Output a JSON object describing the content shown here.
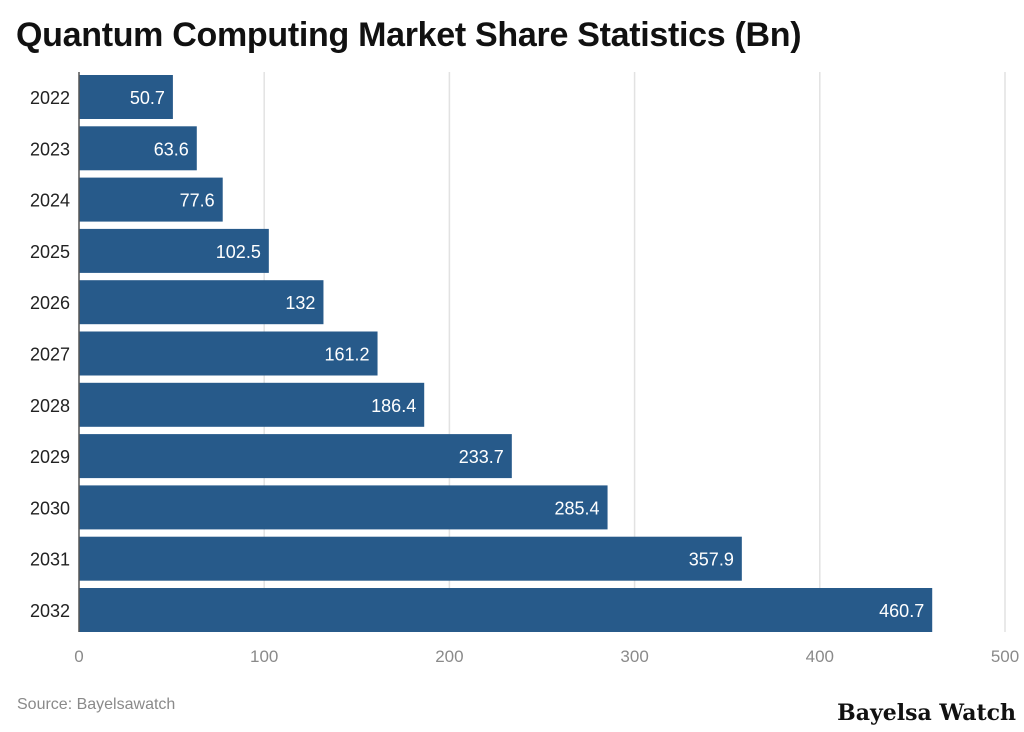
{
  "chart_data": {
    "type": "bar",
    "orientation": "horizontal",
    "title": "Quantum Computing Market Share Statistics (Bn)",
    "categories": [
      "2022",
      "2023",
      "2024",
      "2025",
      "2026",
      "2027",
      "2028",
      "2029",
      "2030",
      "2031",
      "2032"
    ],
    "values": [
      50.7,
      63.6,
      77.6,
      102.5,
      132,
      161.2,
      186.4,
      233.7,
      285.4,
      357.9,
      460.7
    ],
    "data_labels": [
      "50.7",
      "63.6",
      "77.6",
      "102.5",
      "132",
      "161.2",
      "186.4",
      "233.7",
      "285.4",
      "357.9",
      "460.7"
    ],
    "xlim": [
      0,
      500
    ],
    "xticks": [
      "0",
      "100",
      "200",
      "300",
      "400",
      "500"
    ],
    "grid": true,
    "bar_color": "#275a8a"
  },
  "source": "Source: Bayelsawatch",
  "brand": "Bayelsa Watch"
}
